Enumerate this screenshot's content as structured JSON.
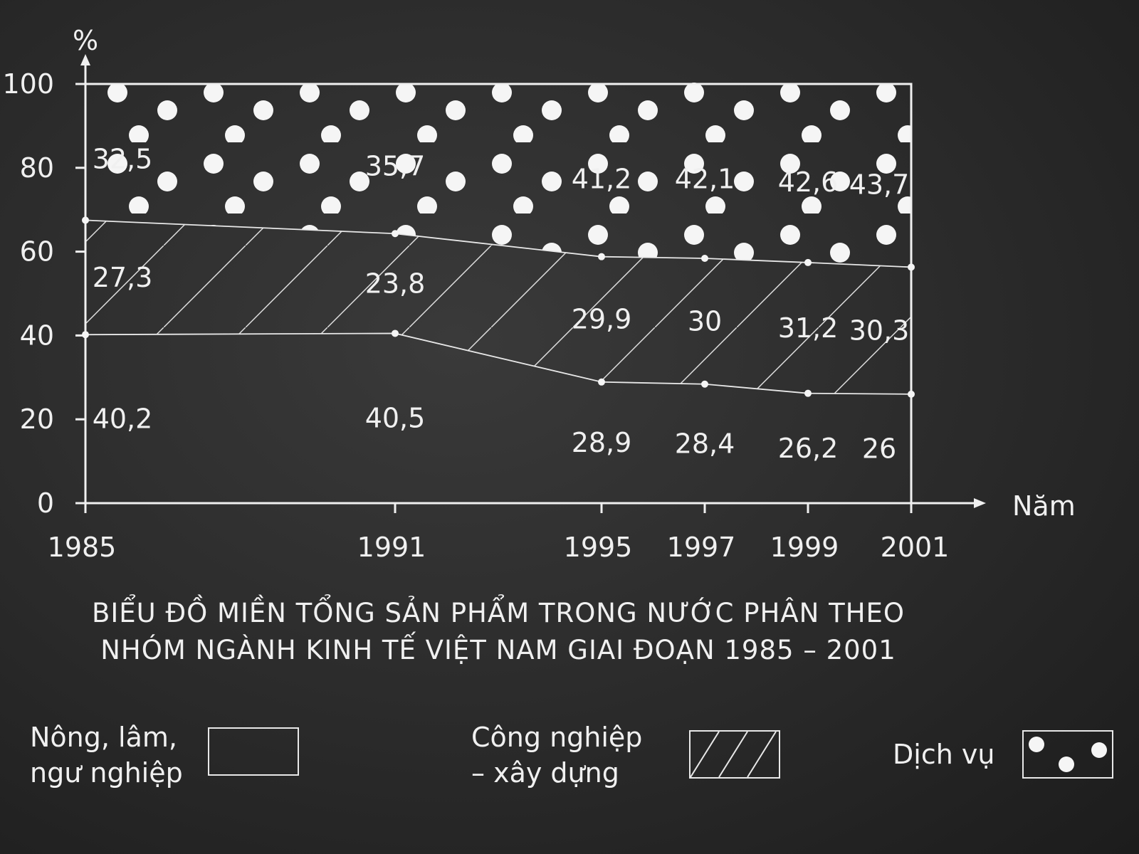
{
  "chart_data": {
    "type": "area",
    "title_line1": "BIỂU ĐỒ MIỀN TỔNG SẢN PHẨM TRONG NƯỚC PHÂN THEO",
    "title_line2": "NHÓM NGÀNH KINH TẾ VIỆT NAM GIAI ĐOẠN 1985 – 2001",
    "xlabel": "Năm",
    "ylabel": "%",
    "x": [
      1985,
      1991,
      1995,
      1997,
      1999,
      2001
    ],
    "x_tick_labels": [
      "1985",
      "1991",
      "1995",
      "1997",
      "1999",
      "2001"
    ],
    "ylim": [
      0,
      100
    ],
    "y_ticks": [
      0,
      20,
      40,
      60,
      80,
      100
    ],
    "stacked": true,
    "series": [
      {
        "name": "Nông, lâm, ngư nghiệp",
        "values": [
          40.2,
          40.5,
          28.9,
          28.4,
          26.2,
          26
        ],
        "labels": [
          "40,2",
          "40,5",
          "28,9",
          "28,4",
          "26,2",
          "26"
        ],
        "fill": "none"
      },
      {
        "name": "Công nghiệp – xây dựng",
        "values": [
          27.3,
          23.8,
          29.9,
          30,
          31.2,
          30.3
        ],
        "labels": [
          "27,3",
          "23,8",
          "29,9",
          "30",
          "31,2",
          "30,3"
        ],
        "fill": "hatch"
      },
      {
        "name": "Dịch vụ",
        "values": [
          32.5,
          35.7,
          41.2,
          42.1,
          42.6,
          43.7
        ],
        "labels": [
          "32,5",
          "35,7",
          "41,2",
          "42,1",
          "42,6",
          "43,7"
        ],
        "fill": "dots"
      }
    ],
    "grid": false,
    "legend_placement": "bottom",
    "colors": {
      "background": "#2b2b2b",
      "chalk": "#f0f0f0"
    }
  },
  "legend": {
    "agri_line1": "Nông, lâm,",
    "agri_line2": "ngư nghiệp",
    "ind_line1": "Công nghiệp",
    "ind_line2": "– xây dựng",
    "serv": "Dịch vụ"
  }
}
